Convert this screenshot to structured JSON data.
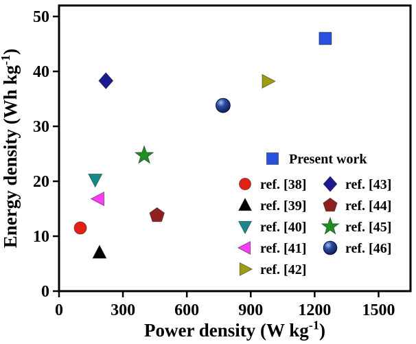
{
  "figure": {
    "background": "#ffffff",
    "axis_color": "#000000",
    "text_color": "#000000"
  },
  "chart_data": {
    "type": "scatter",
    "title": "",
    "xlabel": "Power density (W kg⁻¹)",
    "ylabel": "Energy density (Wh kg⁻¹)",
    "xlim": [
      0,
      1650
    ],
    "ylim": [
      0,
      52
    ],
    "xticks": [
      "0",
      "300",
      "600",
      "900",
      "1200",
      "1500"
    ],
    "yticks": [
      "0",
      "10",
      "20",
      "30",
      "40",
      "50"
    ],
    "grid": false,
    "legend_position": "inside-lower-right",
    "series": [
      {
        "name": "Present work",
        "marker": "square",
        "color": "#2a50e0",
        "points": [
          [
            1250,
            46.0
          ]
        ]
      },
      {
        "name": "ref. [38]",
        "marker": "circle",
        "color": "#e42015",
        "points": [
          [
            100,
            11.5
          ]
        ]
      },
      {
        "name": "ref. [39]",
        "marker": "triangle-up",
        "color": "#000000",
        "points": [
          [
            190,
            7.0
          ]
        ]
      },
      {
        "name": "ref. [40]",
        "marker": "triangle-down",
        "color": "#17898c",
        "points": [
          [
            170,
            20.3
          ]
        ]
      },
      {
        "name": "ref. [41]",
        "marker": "triangle-left",
        "color": "#fb3ef5",
        "points": [
          [
            185,
            16.8
          ]
        ]
      },
      {
        "name": "ref. [42]",
        "marker": "triangle-right",
        "color": "#9d9d15",
        "points": [
          [
            980,
            38.2
          ]
        ]
      },
      {
        "name": "ref. [43]",
        "marker": "diamond",
        "color": "#1b1b8f",
        "points": [
          [
            220,
            38.3
          ]
        ]
      },
      {
        "name": "ref. [44]",
        "marker": "pentagon",
        "color": "#8d2020",
        "points": [
          [
            460,
            13.8
          ]
        ]
      },
      {
        "name": "ref. [45]",
        "marker": "star",
        "color": "#1f8f1f",
        "points": [
          [
            400,
            24.7
          ]
        ]
      },
      {
        "name": "ref. [46]",
        "marker": "sphere",
        "color": "#1c3f90",
        "points": [
          [
            770,
            33.8
          ]
        ]
      }
    ]
  }
}
